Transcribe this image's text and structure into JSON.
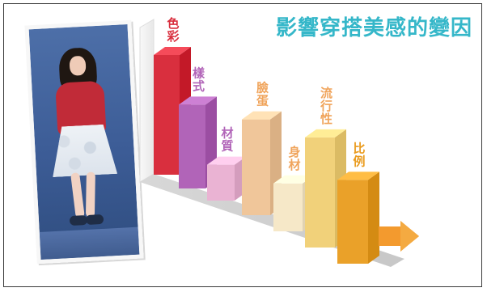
{
  "title": "影響穿搭美感的變因",
  "chart_data": {
    "type": "bar",
    "title": "影響穿搭美感的變因",
    "categories": [
      "色彩",
      "樣式",
      "材質",
      "臉蛋",
      "身材",
      "流行性",
      "比例"
    ],
    "values": [
      100,
      70,
      30,
      80,
      40,
      92,
      70
    ],
    "ylim": [
      0,
      100
    ],
    "xlabel": "",
    "ylabel": "",
    "grid": false,
    "legend": "none"
  },
  "colors": {
    "title": "#35b7c9",
    "bars": [
      "#d92f3e",
      "#b164b8",
      "#eab3d3",
      "#f0c69a",
      "#f6e8c8",
      "#f1d17a",
      "#eaa129"
    ],
    "labels": [
      "#d92f3e",
      "#b164b8",
      "#b164b8",
      "#f0a45b",
      "#f0a45b",
      "#f0a45b",
      "#ea9b1d"
    ],
    "arrow": "#f39a2e"
  },
  "icons": {
    "arrow": "arrow-right-icon"
  }
}
